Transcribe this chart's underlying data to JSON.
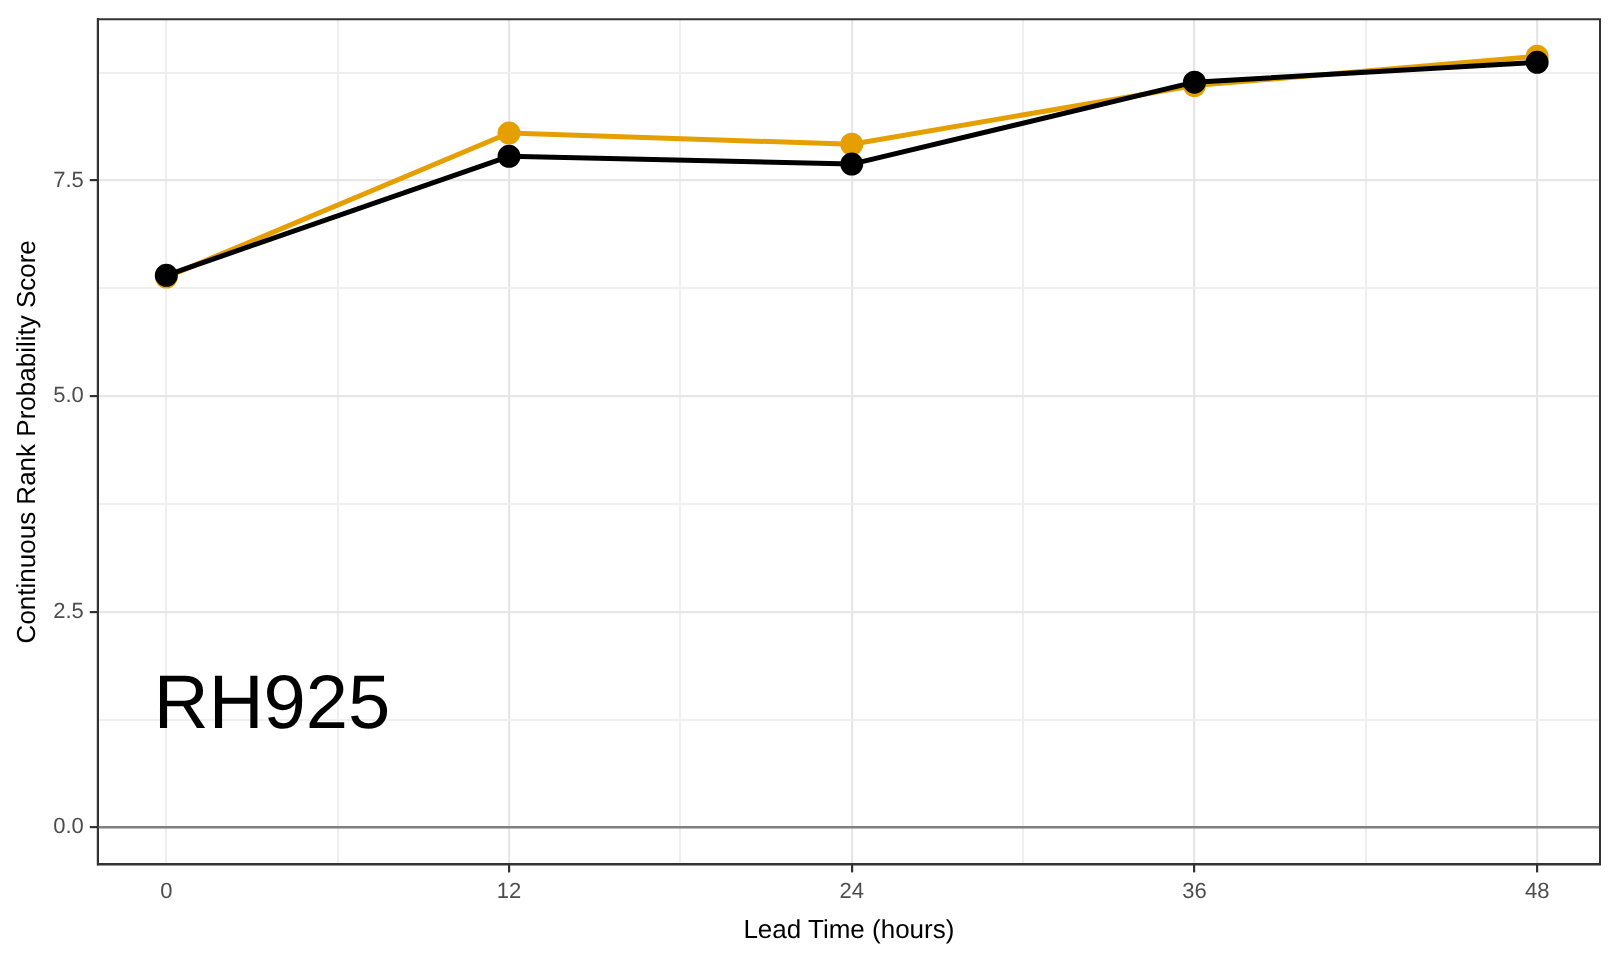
{
  "chart_data": {
    "type": "line",
    "xlabel": "Lead Time (hours)",
    "ylabel": "Continuous Rank Probability Score",
    "x": [
      0,
      12,
      24,
      36,
      48
    ],
    "series": [
      {
        "color": "#000000",
        "values": [
          6.4,
          7.78,
          7.69,
          8.64,
          8.87
        ]
      },
      {
        "color": "#e69f00",
        "values": [
          6.38,
          8.05,
          7.92,
          8.6,
          8.94
        ]
      }
    ],
    "xlim": [
      -2.4,
      50.2
    ],
    "ylim": [
      -0.43,
      9.37
    ],
    "xticks": [
      0,
      {
        "value": 6,
        "label": null
      },
      12,
      {
        "value": 18,
        "label": null
      },
      24,
      {
        "value": 30,
        "label": null
      },
      36,
      {
        "value": 42,
        "label": null
      },
      48
    ],
    "yticks": [
      {
        "value": 0,
        "label": "0.0"
      },
      {
        "value": 1.25,
        "label": null
      },
      {
        "value": 2.5,
        "label": "2.5"
      },
      {
        "value": 3.75,
        "label": null
      },
      {
        "value": 5,
        "label": "5.0"
      },
      {
        "value": 6.25,
        "label": null
      },
      {
        "value": 7.5,
        "label": "7.5"
      },
      {
        "value": 8.75,
        "label": null
      }
    ],
    "ref_lines": [
      {
        "axis": "y",
        "value": 0,
        "color": "#808080"
      }
    ],
    "annotations": [
      "RH925"
    ],
    "grid": true,
    "legend": false,
    "marker": "circle",
    "line_style": "solid"
  }
}
